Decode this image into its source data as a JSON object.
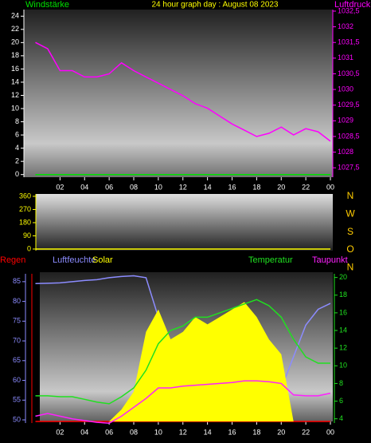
{
  "chart_data": [
    {
      "type": "line",
      "title": "24 hour graph day : August 08 2023",
      "x": [
        0,
        1,
        2,
        3,
        4,
        5,
        6,
        7,
        8,
        9,
        10,
        11,
        12,
        13,
        14,
        15,
        16,
        17,
        18,
        19,
        20,
        21,
        22,
        23,
        24
      ],
      "xlim": [
        0,
        24
      ],
      "xticks": [
        {
          "value": 2,
          "label": "02"
        },
        {
          "value": 4,
          "label": "04"
        },
        {
          "value": 6,
          "label": "06"
        },
        {
          "value": 8,
          "label": "08"
        },
        10,
        12,
        14,
        16,
        18,
        20,
        22,
        {
          "value": 24,
          "label": "00"
        }
      ],
      "ylim": [
        -0.4,
        25
      ],
      "yticks": [
        0,
        2,
        4,
        6,
        8,
        10,
        12,
        14,
        16,
        18,
        20,
        22,
        24
      ],
      "y2lim": [
        1027.2,
        1032.55
      ],
      "y2ticks": [
        {
          "value": 1027.5,
          "label": "1027,5"
        },
        1028,
        {
          "value": 1028.5,
          "label": "1028,5"
        },
        1029,
        {
          "value": 1029.5,
          "label": "1029,5"
        },
        1030,
        {
          "value": 1030.5,
          "label": "1030,5"
        },
        1031,
        {
          "value": 1031.5,
          "label": "1031,5"
        },
        1032,
        {
          "value": 1032.5,
          "label": "1032,5"
        }
      ],
      "series": [
        {
          "name": "Windstärke",
          "color": "#00e000",
          "values": [
            0,
            0,
            0,
            0,
            0,
            0,
            0,
            0,
            0,
            0,
            0,
            0,
            0,
            0,
            0,
            0,
            0,
            0,
            0,
            0,
            0,
            0,
            0,
            0,
            0
          ]
        },
        {
          "name": "Luftdruck",
          "color": "#ff00ff",
          "axis": "y2",
          "values": [
            1031.5,
            1031.3,
            1030.6,
            1030.6,
            1030.4,
            1030.4,
            1030.5,
            1030.85,
            1030.6,
            1030.4,
            1030.2,
            1030,
            1029.8,
            1029.55,
            1029.4,
            1029.15,
            1028.9,
            1028.7,
            1028.5,
            1028.6,
            1028.8,
            1028.55,
            1028.75,
            1028.65,
            1028.35
          ]
        }
      ]
    },
    {
      "type": "line",
      "x": [
        0,
        24
      ],
      "xlim": [
        0,
        24
      ],
      "ylim": [
        -11,
        376
      ],
      "yticks": [
        0,
        90,
        180,
        270,
        360
      ],
      "direction_labels": [
        "N",
        "W",
        "S",
        "O",
        "N"
      ],
      "series": [
        {
          "color": "#ffff00",
          "values": [
            0,
            0
          ]
        }
      ]
    },
    {
      "type": "line",
      "x": [
        0,
        1,
        2,
        3,
        4,
        5,
        6,
        7,
        8,
        9,
        10,
        11,
        12,
        13,
        14,
        15,
        16,
        17,
        18,
        19,
        20,
        21,
        22,
        23,
        24
      ],
      "xlim": [
        0,
        24
      ],
      "xticks": [
        {
          "value": 2,
          "label": "02"
        },
        {
          "value": 4,
          "label": "04"
        },
        {
          "value": 6,
          "label": "06"
        },
        {
          "value": 8,
          "label": "08"
        },
        10,
        12,
        14,
        16,
        18,
        20,
        22,
        {
          "value": 24,
          "label": "00"
        }
      ],
      "ylim": [
        49.6,
        87.4
      ],
      "yticks": [
        50,
        55,
        60,
        65,
        70,
        75,
        80,
        85
      ],
      "y2lim": [
        3.7,
        20.6
      ],
      "y2ticks": [
        4,
        6,
        8,
        10,
        12,
        14,
        16,
        18,
        20
      ],
      "y3lim": [
        0,
        100
      ],
      "series": [
        {
          "name": "Regen",
          "color": "#ff0000",
          "axis": "y3",
          "values": [
            0,
            0,
            0,
            0,
            0,
            0,
            0,
            0,
            0,
            0,
            0,
            0,
            0,
            0,
            0,
            0,
            0,
            0,
            0,
            0,
            0,
            0,
            0,
            0,
            0
          ]
        },
        {
          "name": "Luftfeuchte",
          "color": "#8c8cff",
          "values": [
            84.5,
            84.6,
            84.7,
            85,
            85.3,
            85.5,
            86,
            86.3,
            86.5,
            86,
            76,
            62,
            60,
            58,
            59,
            57,
            57,
            55,
            54,
            55,
            58,
            66,
            74,
            78,
            79.5
          ]
        },
        {
          "name": "Solar",
          "color": "#ffff00",
          "axis": "y3",
          "area": true,
          "values": [
            0,
            0,
            0,
            0,
            0,
            0,
            0,
            8,
            20,
            60,
            75,
            55,
            60,
            70,
            65,
            70,
            75,
            80,
            70,
            55,
            45,
            0,
            0,
            0,
            0
          ]
        },
        {
          "name": "Temperatur",
          "color": "#20e020",
          "axis": "y2",
          "values": [
            6.6,
            6.6,
            6.5,
            6.5,
            6.2,
            5.9,
            5.7,
            6.5,
            7.5,
            9.5,
            12.5,
            14,
            14.5,
            15.5,
            15.5,
            16,
            16.5,
            17,
            17.5,
            16.8,
            15.5,
            13,
            11,
            10.3,
            10.3
          ]
        },
        {
          "name": "Taupunkt",
          "color": "#ff20ff",
          "axis": "y2",
          "values": [
            4.3,
            4.6,
            4.3,
            4,
            3.8,
            3.6,
            3.5,
            4.3,
            5.3,
            6.3,
            7.5,
            7.5,
            7.7,
            7.8,
            7.9,
            8,
            8.1,
            8.3,
            8.3,
            8.2,
            8,
            6.7,
            6.6,
            6.6,
            6.9
          ]
        }
      ]
    }
  ]
}
